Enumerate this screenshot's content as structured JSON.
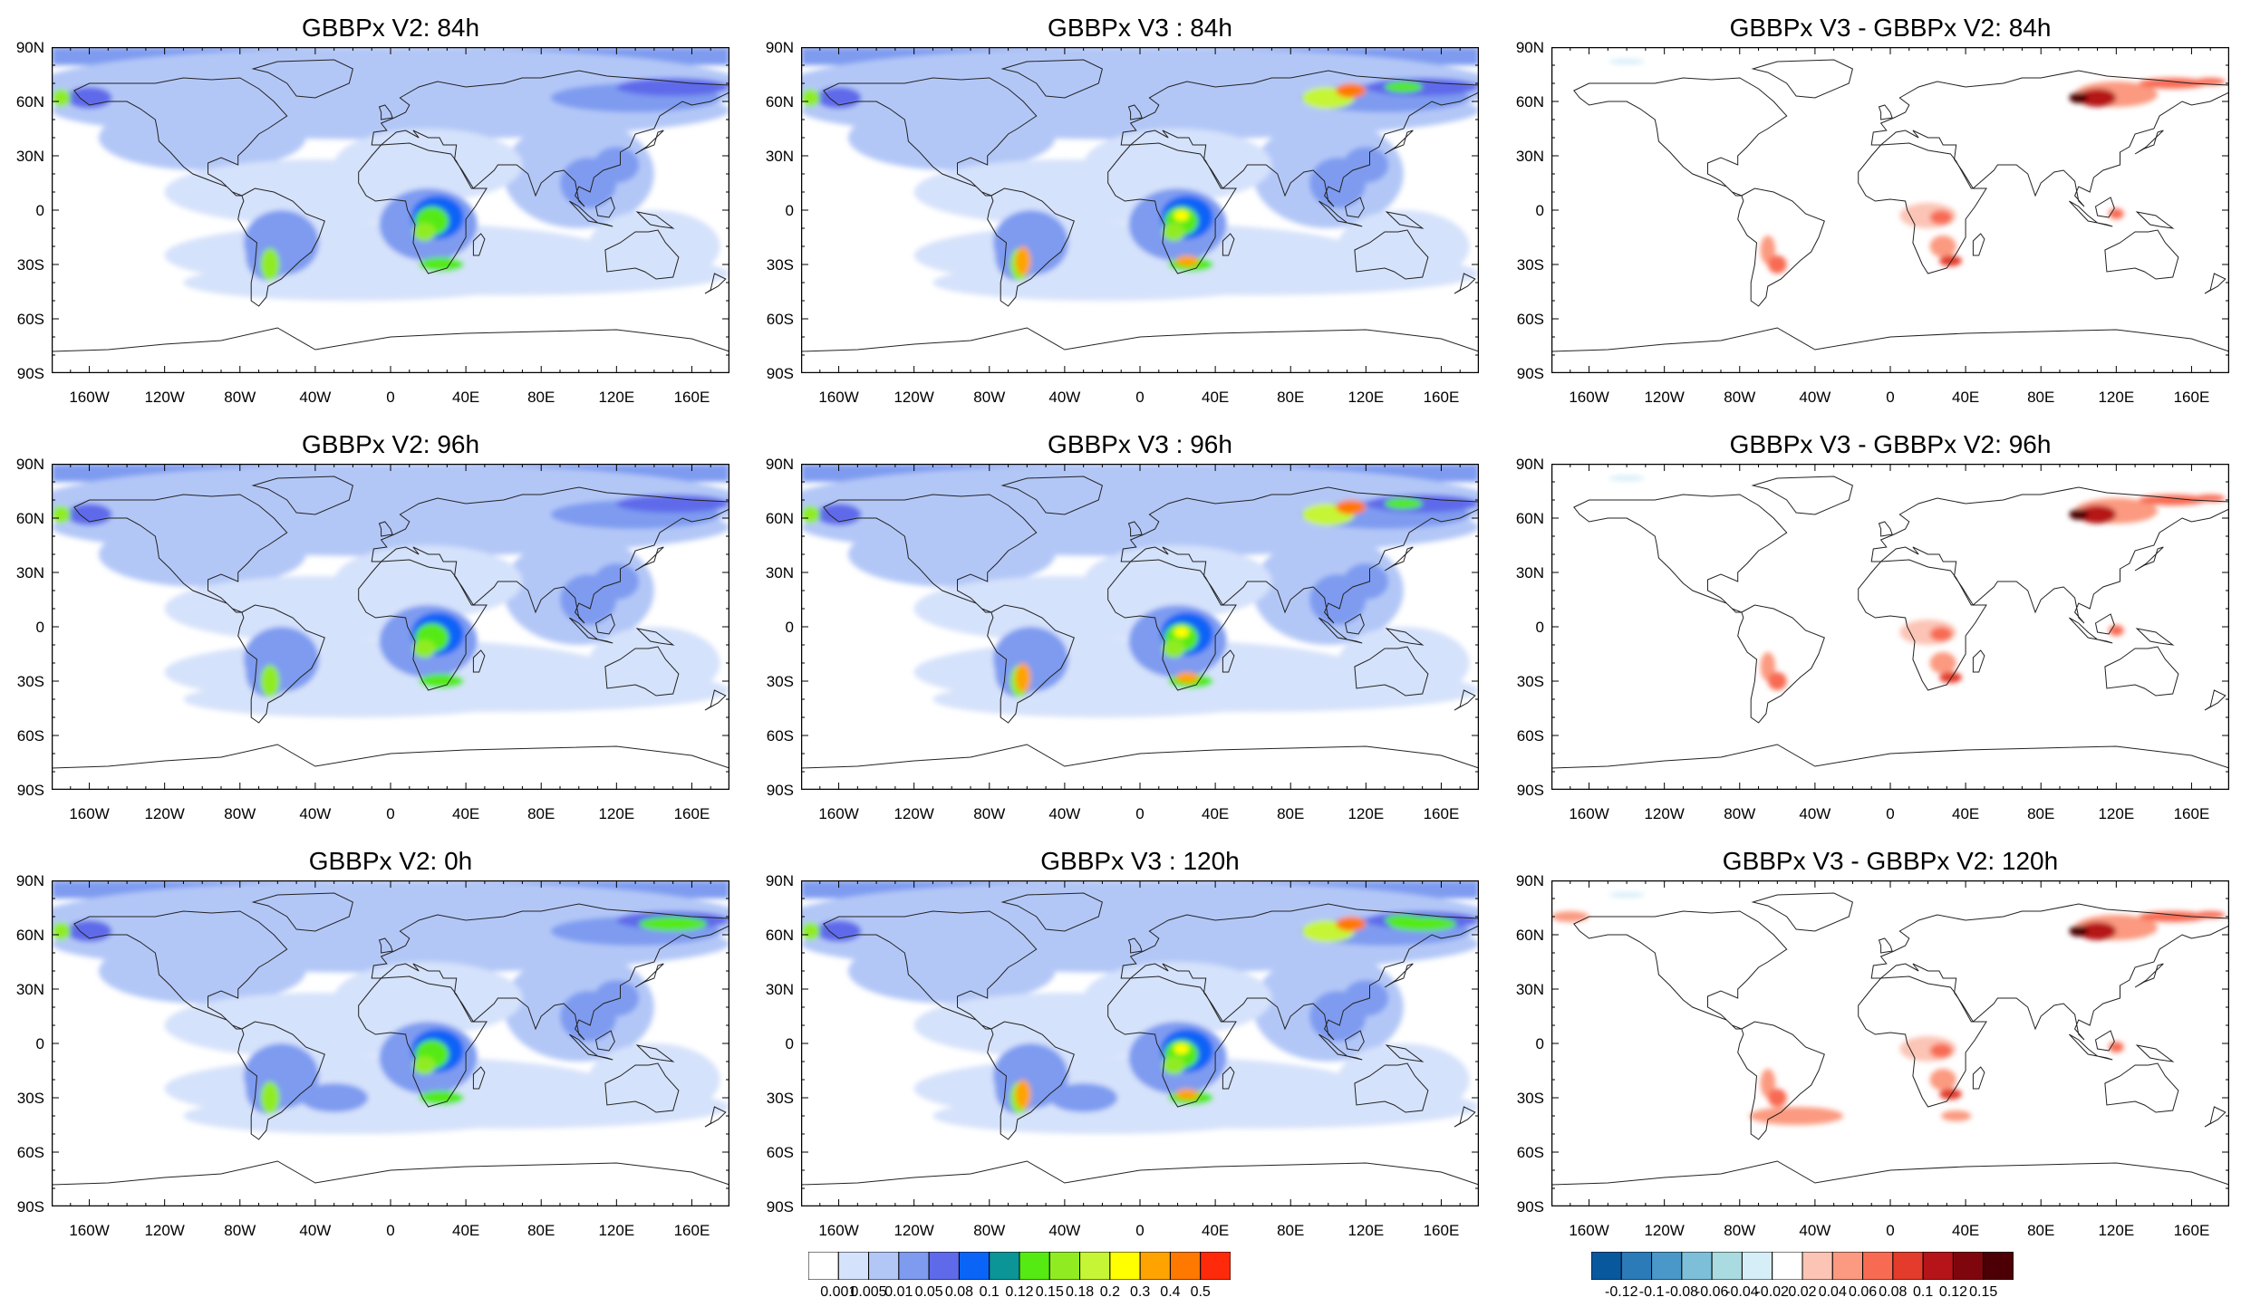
{
  "lat_labels": [
    "90N",
    "60N",
    "30N",
    "0",
    "30S",
    "60S",
    "90S"
  ],
  "lon_labels": [
    "160W",
    "120W",
    "80W",
    "40W",
    "0",
    "40E",
    "80E",
    "120E",
    "160E"
  ],
  "panels": [
    {
      "id": "v2-84h",
      "title": "GBBPx V2: 84h",
      "kind": "field"
    },
    {
      "id": "v3-84h",
      "title": "GBBPx V3 : 84h",
      "kind": "field"
    },
    {
      "id": "diff-84h",
      "title": "GBBPx V3 - GBBPx V2: 84h",
      "kind": "diff"
    },
    {
      "id": "v2-96h",
      "title": "GBBPx V2: 96h",
      "kind": "field"
    },
    {
      "id": "v3-96h",
      "title": "GBBPx V3 : 96h",
      "kind": "field"
    },
    {
      "id": "diff-96h",
      "title": "GBBPx V3 - GBBPx V2: 96h",
      "kind": "diff"
    },
    {
      "id": "v2-0h",
      "title": "GBBPx V2: 0h",
      "kind": "field"
    },
    {
      "id": "v3-120h",
      "title": "GBBPx V3 : 120h",
      "kind": "field"
    },
    {
      "id": "diff-120h",
      "title": "GBBPx V3 - GBBPx V2: 120h",
      "kind": "diff"
    }
  ],
  "colorbar_field": {
    "colors": [
      "#ffffff",
      "#d5e2fb",
      "#b3c7f7",
      "#7e9bf0",
      "#5f6aea",
      "#0a64f7",
      "#0b9596",
      "#55ea12",
      "#90ec21",
      "#c6f535",
      "#ffff00",
      "#ffa300",
      "#ff7800",
      "#ff2a0a"
    ],
    "labels": [
      "0.001",
      "0.005",
      "0.01",
      "0.05",
      "0.08",
      "0.1",
      "0.12",
      "0.15",
      "0.18",
      "0.2",
      "0.3",
      "0.4",
      "0.5"
    ]
  },
  "colorbar_diff": {
    "colors": [
      "#08589e",
      "#2b7bb9",
      "#4a98c9",
      "#7dbfd9",
      "#a9dbe0",
      "#d5eef7",
      "#ffffff",
      "#fbc4b5",
      "#fb9a80",
      "#f86b52",
      "#e33b2c",
      "#b51419",
      "#80060e",
      "#4c0005"
    ],
    "labels": [
      "-0.12",
      "-0.1",
      "-0.08",
      "-0.06",
      "-0.04",
      "-0.02",
      "0.02",
      "0.04",
      "0.06",
      "0.08",
      "0.1",
      "0.12",
      "0.15"
    ]
  }
}
